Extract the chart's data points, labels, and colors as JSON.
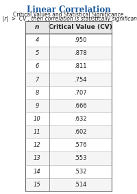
{
  "title": "Linear Correlation",
  "subtitle1": "Critical Values and Statistical Significance",
  "subtitle2": "If  |r|  >  CV , then correlation is statistically significant.",
  "col_headers": [
    "n",
    "Critical Value (CV)"
  ],
  "rows": [
    [
      "4",
      ".950"
    ],
    [
      "5",
      ".878"
    ],
    [
      "6",
      ".811"
    ],
    [
      "7",
      ".754"
    ],
    [
      "8",
      ".707"
    ],
    [
      "9",
      ".666"
    ],
    [
      "10",
      ".632"
    ],
    [
      "11",
      ".602"
    ],
    [
      "12",
      ".576"
    ],
    [
      "13",
      ".553"
    ],
    [
      "14",
      ".532"
    ],
    [
      "15",
      ".514"
    ]
  ],
  "title_color": "#1a5799",
  "header_bg": "#e8e8e8",
  "row_bg_even": "#ffffff",
  "row_bg_odd": "#f5f5f5",
  "table_border_color": "#aaaaaa",
  "text_color": "#222222",
  "background_color": "#ffffff"
}
